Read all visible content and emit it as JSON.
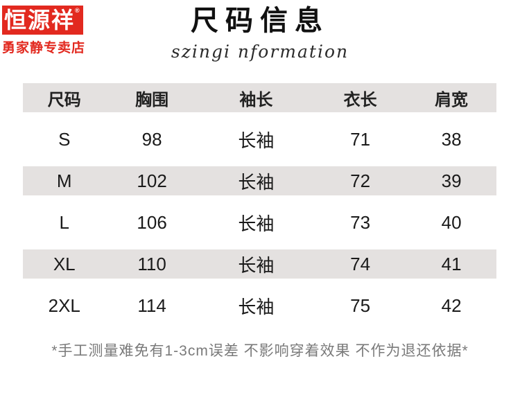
{
  "logo": {
    "brand": "恒源祥",
    "reg_mark": "®",
    "store": "勇家静专卖店"
  },
  "header": {
    "title": "尺码信息",
    "subtitle": "szingi nformation"
  },
  "table": {
    "columns": [
      "尺码",
      "胸围",
      "袖长",
      "衣长",
      "肩宽"
    ],
    "rows": [
      [
        "S",
        "98",
        "长袖",
        "71",
        "38"
      ],
      [
        "M",
        "102",
        "长袖",
        "72",
        "39"
      ],
      [
        "L",
        "106",
        "长袖",
        "73",
        "40"
      ],
      [
        "XL",
        "110",
        "长袖",
        "74",
        "41"
      ],
      [
        "2XL",
        "114",
        "长袖",
        "75",
        "42"
      ]
    ]
  },
  "footnote": "*手工测量难免有1-3cm误差 不影响穿着效果 不作为退还依据*",
  "colors": {
    "brand_red": "#e2291f",
    "stripe_gray": "#e4e1e0",
    "footnote_gray": "#7a7a7a"
  }
}
